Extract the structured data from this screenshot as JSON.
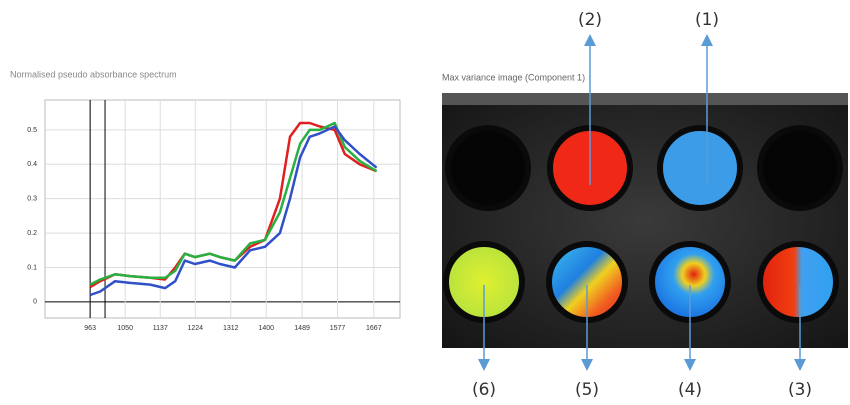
{
  "chart_data": {
    "type": "line",
    "title": "Normalised pseudo absorbance spectrum",
    "x": [
      963,
      988,
      1025,
      1062,
      1112,
      1149,
      1174,
      1198,
      1223,
      1260,
      1285,
      1322,
      1360,
      1397,
      1434,
      1459,
      1484,
      1508,
      1533,
      1570,
      1595,
      1632,
      1674
    ],
    "series": [
      {
        "color": "#e02020",
        "values": [
          0.043,
          0.06,
          0.08,
          0.075,
          0.07,
          0.065,
          0.1,
          0.14,
          0.13,
          0.14,
          0.13,
          0.12,
          0.16,
          0.18,
          0.3,
          0.48,
          0.52,
          0.52,
          0.51,
          0.5,
          0.43,
          0.4,
          0.38
        ]
      },
      {
        "color": "#28b040",
        "values": [
          0.05,
          0.065,
          0.08,
          0.075,
          0.07,
          0.07,
          0.09,
          0.14,
          0.13,
          0.14,
          0.13,
          0.12,
          0.17,
          0.18,
          0.26,
          0.36,
          0.46,
          0.5,
          0.5,
          0.52,
          0.45,
          0.41,
          0.38
        ]
      },
      {
        "color": "#3050c8",
        "values": [
          0.02,
          0.03,
          0.06,
          0.055,
          0.05,
          0.04,
          0.06,
          0.12,
          0.11,
          0.12,
          0.11,
          0.1,
          0.15,
          0.16,
          0.2,
          0.3,
          0.42,
          0.48,
          0.49,
          0.51,
          0.47,
          0.43,
          0.39
        ]
      }
    ],
    "xlim": [
      851,
      1732
    ],
    "xticks": [
      963,
      1050,
      1137,
      1224,
      1312,
      1400,
      1489,
      1577,
      1667
    ],
    "ylim": [
      -0.047,
      0.587
    ],
    "yticks": [
      0,
      0.1,
      0.2,
      0.3,
      0.4,
      0.5
    ],
    "vlines": [
      963,
      1000
    ],
    "grid": true
  },
  "image": {
    "title": "Max variance image (Component  1)",
    "labels": [
      "(1)",
      "(2)",
      "(3)",
      "(4)",
      "(5)",
      "(6)"
    ]
  }
}
